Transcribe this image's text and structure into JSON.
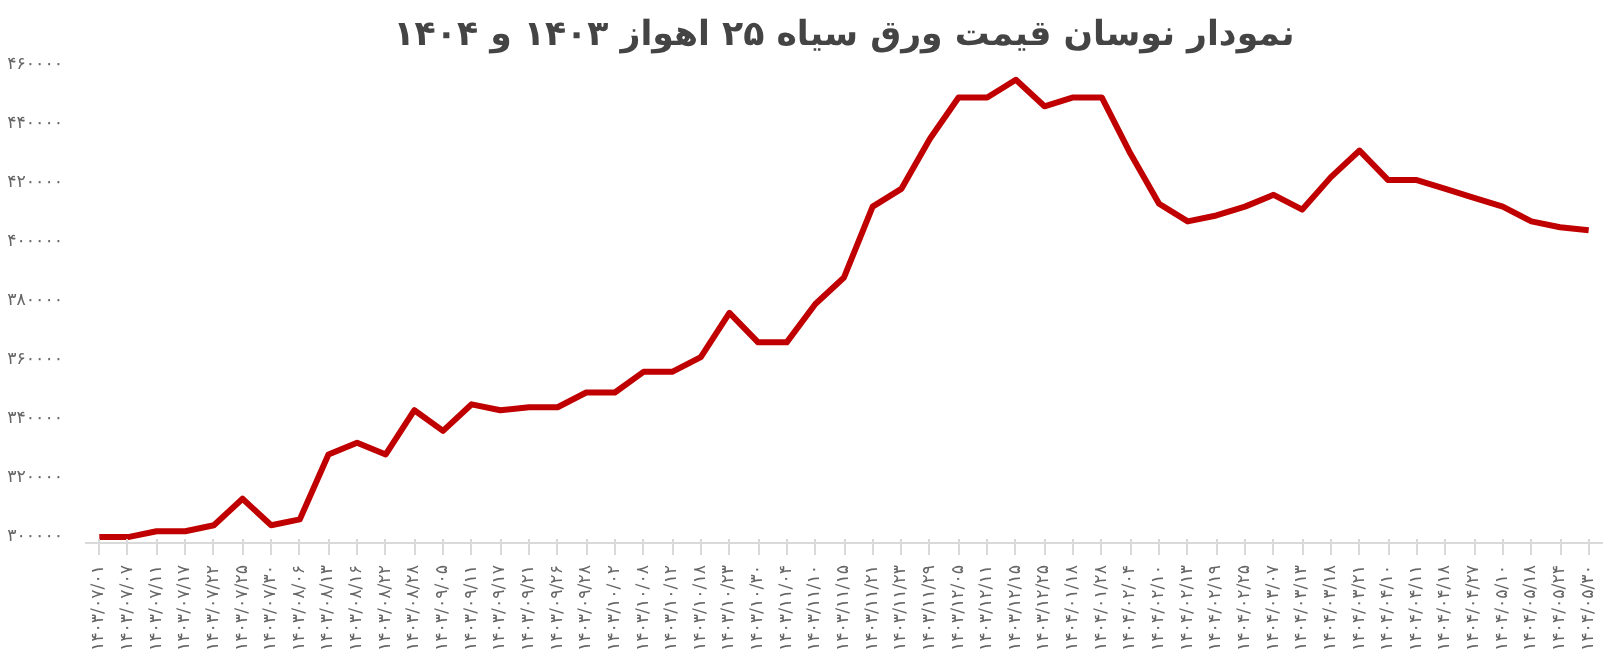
{
  "chart_data": {
    "type": "line",
    "title": "نمودار نوسان قیمت ورق سیاه ۲۵ اهواز ۱۴۰۳ و ۱۴۰۴",
    "categories": [
      "۱۴۰۳/۰۷/۰۱",
      "۱۴۰۳/۰۷/۰۷",
      "۱۴۰۳/۰۷/۱۱",
      "۱۴۰۳/۰۷/۱۷",
      "۱۴۰۳/۰۷/۲۲",
      "۱۴۰۳/۰۷/۲۵",
      "۱۴۰۳/۰۷/۳۰",
      "۱۴۰۳/۰۸/۰۶",
      "۱۴۰۳/۰۸/۱۳",
      "۱۴۰۳/۰۸/۱۶",
      "۱۴۰۳/۰۸/۲۲",
      "۱۴۰۳/۰۸/۲۸",
      "۱۴۰۳/۰۹/۰۵",
      "۱۴۰۳/۰۹/۱۱",
      "۱۴۰۳/۰۹/۱۷",
      "۱۴۰۳/۰۹/۲۱",
      "۱۴۰۳/۰۹/۲۶",
      "۱۴۰۳/۰۹/۲۸",
      "۱۴۰۳/۱۰/۰۲",
      "۱۴۰۳/۱۰/۰۸",
      "۱۴۰۳/۱۰/۱۲",
      "۱۴۰۳/۱۰/۱۸",
      "۱۴۰۳/۱۰/۲۳",
      "۱۴۰۳/۱۰/۳۰",
      "۱۴۰۳/۱۱/۰۴",
      "۱۴۰۳/۱۱/۱۰",
      "۱۴۰۳/۱۱/۱۵",
      "۱۴۰۳/۱۱/۲۱",
      "۱۴۰۳/۱۱/۲۳",
      "۱۴۰۳/۱۱/۲۹",
      "۱۴۰۳/۱۲/۰۵",
      "۱۴۰۳/۱۲/۱۱",
      "۱۴۰۳/۱۲/۱۵",
      "۱۴۰۳/۱۲/۲۵",
      "۱۴۰۴/۰۱/۱۸",
      "۱۴۰۴/۰۱/۲۸",
      "۱۴۰۴/۰۲/۰۴",
      "۱۴۰۴/۰۲/۱۰",
      "۱۴۰۴/۰۲/۱۳",
      "۱۴۰۴/۰۲/۱۹",
      "۱۴۰۴/۰۲/۲۵",
      "۱۴۰۴/۰۳/۰۷",
      "۱۴۰۴/۰۳/۱۳",
      "۱۴۰۴/۰۳/۱۸",
      "۱۴۰۴/۰۳/۲۱",
      "۱۴۰۴/۰۴/۱۰",
      "۱۴۰۴/۰۴/۱۱",
      "۱۴۰۴/۰۴/۱۸",
      "۱۴۰۴/۰۴/۲۷",
      "۱۴۰۴/۰۵/۱۰",
      "۱۴۰۴/۰۵/۱۸",
      "۱۴۰۴/۰۵/۲۴",
      "۱۴۰۴/۰۵/۳۰"
    ],
    "series": [
      {
        "color": "#c00000",
        "values": [
          300000,
          300000,
          302000,
          302000,
          304000,
          313000,
          304000,
          306000,
          328000,
          332000,
          328000,
          343000,
          336000,
          345000,
          343000,
          344000,
          344000,
          349000,
          349000,
          356000,
          356000,
          361000,
          376000,
          366000,
          366000,
          379000,
          388000,
          412000,
          418000,
          435000,
          449000,
          449000,
          455000,
          446000,
          449000,
          449000,
          430000,
          413000,
          407000,
          409000,
          412000,
          416000,
          411000,
          422000,
          431000,
          421000,
          421000,
          418000,
          415000,
          412000,
          407000,
          405000,
          404000
        ]
      }
    ],
    "ylim": [
      298000,
      460000
    ],
    "yticks": [
      {
        "value": 300000,
        "label": "۳۰۰۰۰۰"
      },
      {
        "value": 320000,
        "label": "۳۲۰۰۰۰"
      },
      {
        "value": 340000,
        "label": "۳۴۰۰۰۰"
      },
      {
        "value": 360000,
        "label": "۳۶۰۰۰۰"
      },
      {
        "value": 380000,
        "label": "۳۸۰۰۰۰"
      },
      {
        "value": 400000,
        "label": "۴۰۰۰۰۰"
      },
      {
        "value": 420000,
        "label": "۴۲۰۰۰۰"
      },
      {
        "value": 440000,
        "label": "۴۴۰۰۰۰"
      },
      {
        "value": 460000,
        "label": "۴۶۰۰۰۰"
      }
    ],
    "grid": false,
    "marker": "none",
    "line_style": "solid"
  }
}
